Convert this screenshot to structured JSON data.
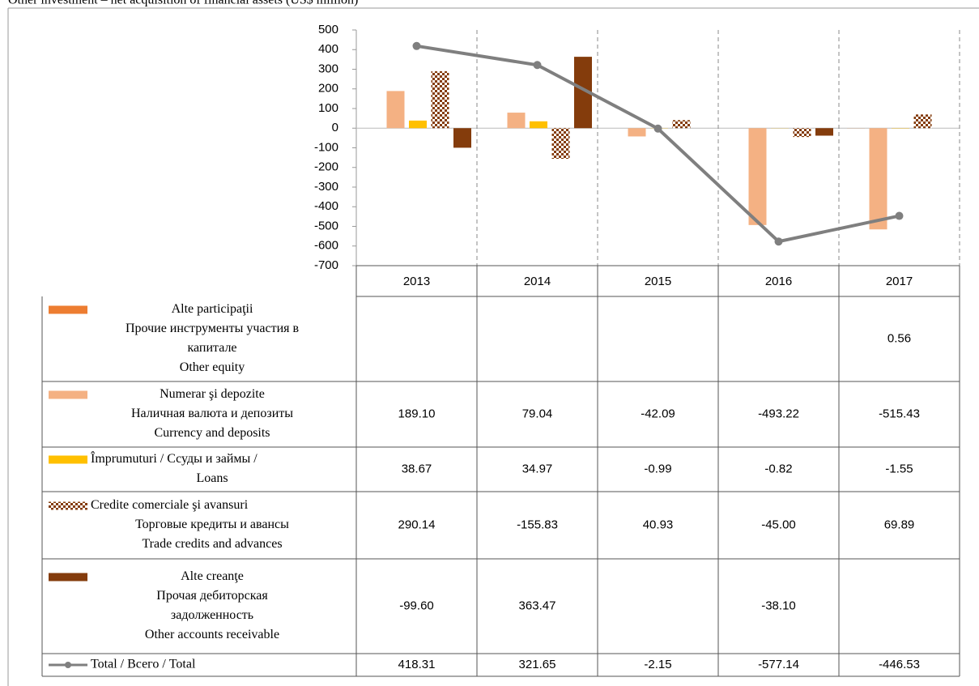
{
  "chart_data": {
    "type": "bar",
    "title": "Other investment – net acquisition of financial assets (US$ million)",
    "categories": [
      "2013",
      "2014",
      "2015",
      "2016",
      "2017"
    ],
    "ylim": [
      -700,
      500
    ],
    "yticks": [
      500,
      400,
      300,
      200,
      100,
      0,
      -100,
      -200,
      -300,
      -400,
      -500,
      -600,
      -700
    ],
    "series": [
      {
        "name": [
          "Alte participaţii",
          "Прочие инструменты участия в",
          "капитале",
          "Other equity"
        ],
        "color": "#ED7D31",
        "values": [
          null,
          null,
          null,
          null,
          0.56
        ],
        "value_labels": [
          null,
          null,
          null,
          null,
          "0.56"
        ]
      },
      {
        "name": [
          "Numerar şi depozite",
          "Наличная валюта и депозиты",
          "Currency and deposits"
        ],
        "color": "#F4B183",
        "values": [
          189.1,
          79.04,
          -42.09,
          -493.22,
          -515.43
        ],
        "value_labels": [
          "189.10",
          "79.04",
          "-42.09",
          "-493.22",
          "-515.43"
        ]
      },
      {
        "name": [
          "Împrumuturi / Ссуды и займы /",
          "Loans"
        ],
        "color": "#FFC000",
        "values": [
          38.67,
          34.97,
          -0.99,
          -0.82,
          -1.55
        ],
        "value_labels": [
          "38.67",
          "34.97",
          "-0.99",
          "-0.82",
          "-1.55"
        ]
      },
      {
        "name": [
          "Credite comerciale şi avansuri",
          "Торговые кредиты и авансы",
          "Trade credits and advances"
        ],
        "color": "#843C0C",
        "fill_pattern": "checkered",
        "values": [
          290.14,
          -155.83,
          40.93,
          -45.0,
          69.89
        ],
        "value_labels": [
          "290.14",
          "-155.83",
          "40.93",
          "-45.00",
          "69.89"
        ]
      },
      {
        "name": [
          "Alte creanţe",
          "Прочая дебиторская",
          "задолженность",
          "Other accounts receivable"
        ],
        "color": "#843C0C",
        "values": [
          -99.6,
          363.47,
          null,
          -38.1,
          null
        ],
        "value_labels": [
          "-99.60",
          "363.47",
          null,
          "-38.10",
          null
        ]
      },
      {
        "name": [
          "Total / Всего / Total"
        ],
        "color": "#7F7F7F",
        "type": "line",
        "values": [
          418.31,
          321.65,
          -2.15,
          -577.14,
          -446.53
        ],
        "value_labels": [
          "418.31",
          "321.65",
          "-2.15",
          "-577.14",
          "-446.53"
        ]
      }
    ]
  }
}
